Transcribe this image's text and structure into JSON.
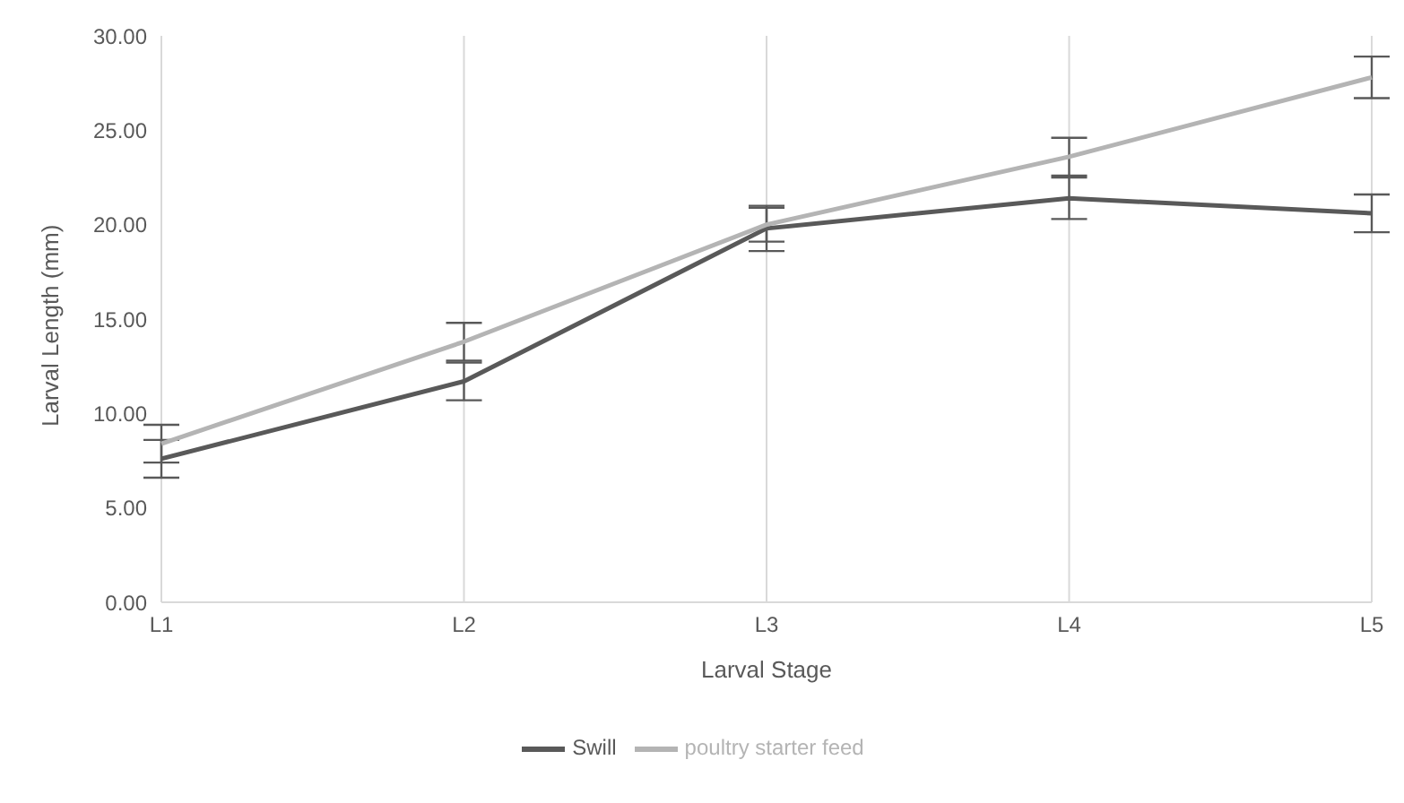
{
  "chart_data": {
    "type": "line",
    "xlabel": "Larval Stage",
    "ylabel": "Larval Length (mm)",
    "categories": [
      "L1",
      "L2",
      "L3",
      "L4",
      "L5"
    ],
    "series": [
      {
        "name": "Swill",
        "color": "#595959",
        "values": [
          7.6,
          11.7,
          19.8,
          21.4,
          20.6
        ],
        "errors": [
          1.0,
          1.0,
          1.2,
          1.1,
          1.0
        ]
      },
      {
        "name": "poultry starter feed",
        "color": "#b4b4b4",
        "values": [
          8.4,
          13.8,
          20.0,
          23.6,
          27.8
        ],
        "errors": [
          1.0,
          1.0,
          0.9,
          1.0,
          1.1
        ]
      }
    ],
    "ylim": [
      0,
      30
    ],
    "yticks": [
      {
        "value": 0,
        "label": "0.00"
      },
      {
        "value": 5,
        "label": "5.00"
      },
      {
        "value": 10,
        "label": "10.00"
      },
      {
        "value": 15,
        "label": "15.00"
      },
      {
        "value": 20,
        "label": "20.00"
      },
      {
        "value": 25,
        "label": "25.00"
      },
      {
        "value": 30,
        "label": "30.00"
      }
    ],
    "grid": "x",
    "legend": "bottom",
    "marker": "none",
    "line_style": "solid"
  }
}
